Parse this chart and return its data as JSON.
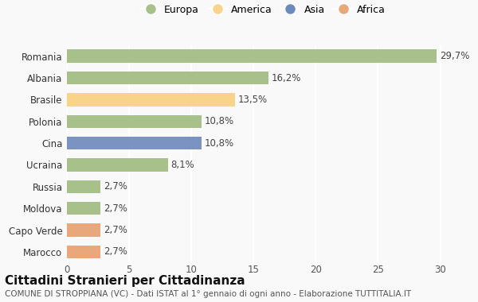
{
  "categories": [
    "Romania",
    "Albania",
    "Brasile",
    "Polonia",
    "Cina",
    "Ucraina",
    "Russia",
    "Moldova",
    "Capo Verde",
    "Marocco"
  ],
  "values": [
    29.7,
    16.2,
    13.5,
    10.8,
    10.8,
    8.1,
    2.7,
    2.7,
    2.7,
    2.7
  ],
  "labels": [
    "29,7%",
    "16,2%",
    "13,5%",
    "10,8%",
    "10,8%",
    "8,1%",
    "2,7%",
    "2,7%",
    "2,7%",
    "2,7%"
  ],
  "colors": [
    "#a8c08a",
    "#a8c08a",
    "#f9d38a",
    "#a8c08a",
    "#7b93c0",
    "#a8c08a",
    "#a8c08a",
    "#a8c08a",
    "#e8a87c",
    "#e8a87c"
  ],
  "legend": [
    {
      "label": "Europa",
      "color": "#a8c08a"
    },
    {
      "label": "America",
      "color": "#f9d38a"
    },
    {
      "label": "Asia",
      "color": "#6b8cba"
    },
    {
      "label": "Africa",
      "color": "#e8a87c"
    }
  ],
  "xlim": [
    0,
    31.5
  ],
  "xticks": [
    0,
    5,
    10,
    15,
    20,
    25,
    30
  ],
  "title": "Cittadini Stranieri per Cittadinanza",
  "subtitle": "COMUNE DI STROPPIANA (VC) - Dati ISTAT al 1° gennaio di ogni anno - Elaborazione TUTTITALIA.IT",
  "background_color": "#f9f9f9",
  "plot_bg_color": "#f9f9f9",
  "bar_height": 0.6,
  "grid_color": "#ffffff",
  "title_fontsize": 11,
  "subtitle_fontsize": 7.5,
  "label_fontsize": 8.5,
  "tick_fontsize": 8.5,
  "legend_fontsize": 9
}
